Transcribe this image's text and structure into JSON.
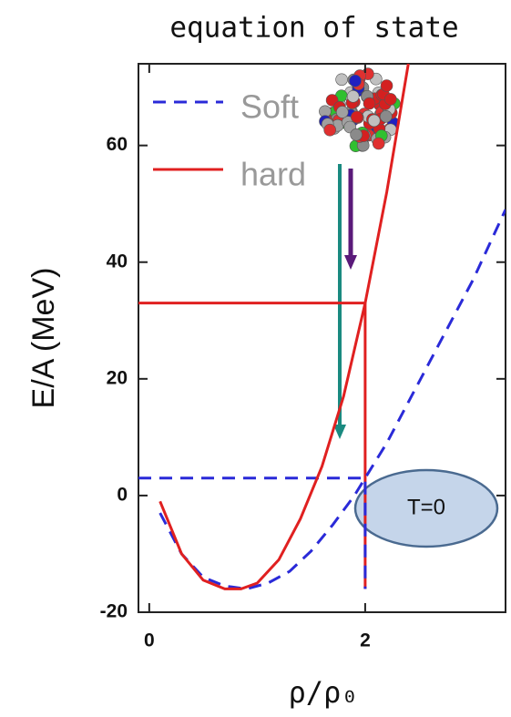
{
  "chart_data": {
    "type": "line",
    "title": "equation of state",
    "xlabel": "ρ/ρ₀",
    "ylabel": "E/A (MeV)",
    "xlim": [
      -0.1,
      3.3
    ],
    "ylim": [
      -20,
      74
    ],
    "xticks": [
      0,
      2
    ],
    "yticks": [
      -20,
      0,
      20,
      40,
      60
    ],
    "legend": "upper left",
    "series": [
      {
        "name": "Soft",
        "color": "#2a2ad8",
        "dash": true,
        "x": [
          0.1,
          0.3,
          0.5,
          0.7,
          0.9,
          1.1,
          1.3,
          1.5,
          1.7,
          1.9,
          2.0,
          2.2,
          2.4,
          2.6,
          2.8,
          3.0,
          3.2,
          3.3
        ],
        "values": [
          -3,
          -10,
          -14,
          -15.5,
          -16,
          -15,
          -13,
          -9.5,
          -5,
          0,
          3,
          9,
          16,
          23,
          30,
          37,
          45,
          49
        ]
      },
      {
        "name": "hard",
        "color": "#e02020",
        "dash": false,
        "x": [
          0.1,
          0.3,
          0.5,
          0.7,
          0.85,
          1.0,
          1.2,
          1.4,
          1.6,
          1.8,
          2.0,
          2.2,
          2.4
        ],
        "values": [
          -1,
          -10,
          -14.5,
          -16,
          -16,
          -15,
          -11,
          -4,
          5,
          17,
          33,
          52,
          74
        ]
      }
    ],
    "guides": [
      {
        "color": "#e02020",
        "dash": false,
        "x": [
          -0.1,
          2,
          2
        ],
        "values": [
          33,
          33,
          -16
        ]
      },
      {
        "color": "#2a2ad8",
        "dash": true,
        "x": [
          -0.1,
          2,
          2
        ],
        "values": [
          3,
          3,
          -16
        ]
      }
    ],
    "annotation": "T=0"
  }
}
